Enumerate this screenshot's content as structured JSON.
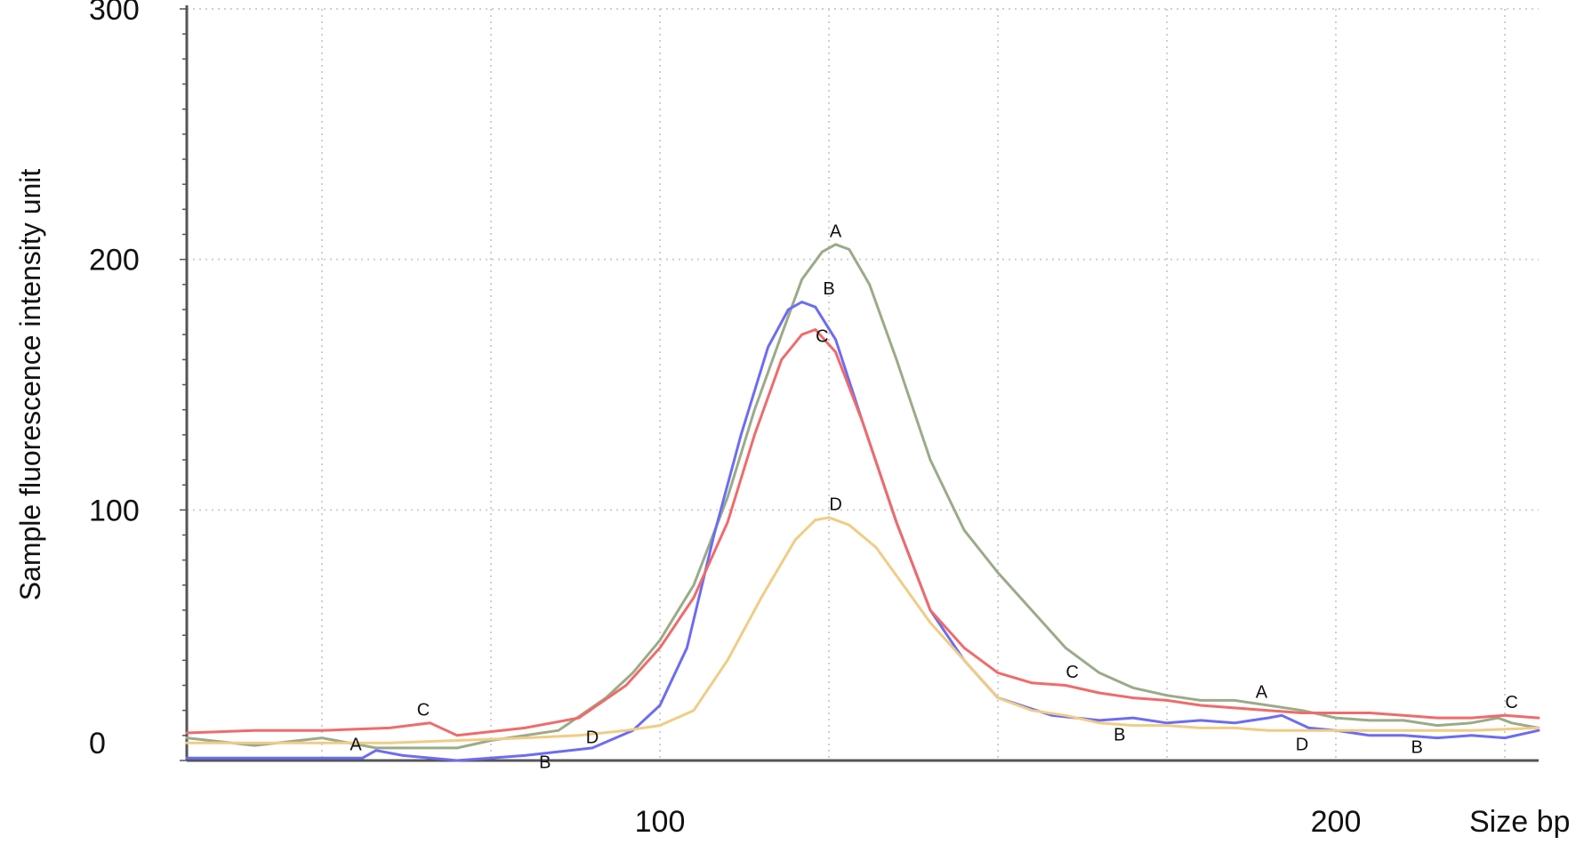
{
  "chart_data": {
    "type": "line",
    "title": "",
    "ylabel": "Sample fluorescence intensity  unit",
    "xlabel": "Size bp",
    "xlim": [
      30,
      230
    ],
    "ylim": [
      0,
      300
    ],
    "grid": true,
    "x_ticks": [
      {
        "value": 100,
        "label": "100"
      },
      {
        "value": 200,
        "label": "200"
      }
    ],
    "y_ticks": [
      {
        "value": 0,
        "label": "0"
      },
      {
        "value": 100,
        "label": "100"
      },
      {
        "value": 200,
        "label": "200"
      },
      {
        "value": 300,
        "label": "300"
      }
    ],
    "colors": {
      "A": "#9aab88",
      "B": "#6d6cf2",
      "C": "#ef6b6b",
      "D": "#f0cc85",
      "grid": "#cfcfcf",
      "axis": "#555555"
    },
    "series": [
      {
        "name": "A",
        "color": "#9aab88",
        "points": [
          [
            30,
            9
          ],
          [
            40,
            6
          ],
          [
            50,
            9
          ],
          [
            58,
            5
          ],
          [
            70,
            5
          ],
          [
            75,
            8
          ],
          [
            85,
            12
          ],
          [
            92,
            25
          ],
          [
            96,
            35
          ],
          [
            100,
            48
          ],
          [
            105,
            70
          ],
          [
            110,
            105
          ],
          [
            114,
            140
          ],
          [
            118,
            170
          ],
          [
            121,
            192
          ],
          [
            124,
            203
          ],
          [
            126,
            206
          ],
          [
            128,
            204
          ],
          [
            131,
            190
          ],
          [
            135,
            160
          ],
          [
            140,
            120
          ],
          [
            145,
            92
          ],
          [
            150,
            75
          ],
          [
            155,
            60
          ],
          [
            160,
            45
          ],
          [
            165,
            35
          ],
          [
            170,
            29
          ],
          [
            175,
            26
          ],
          [
            180,
            24
          ],
          [
            185,
            24
          ],
          [
            190,
            22
          ],
          [
            195,
            20
          ],
          [
            200,
            17
          ],
          [
            205,
            16
          ],
          [
            210,
            16
          ],
          [
            215,
            14
          ],
          [
            220,
            15
          ],
          [
            224,
            17
          ],
          [
            226,
            15
          ],
          [
            230,
            13
          ]
        ]
      },
      {
        "name": "B",
        "color": "#6d6cf2",
        "points": [
          [
            30,
            1
          ],
          [
            50,
            1
          ],
          [
            56,
            1
          ],
          [
            58,
            4
          ],
          [
            62,
            2
          ],
          [
            70,
            0
          ],
          [
            80,
            2
          ],
          [
            90,
            5
          ],
          [
            96,
            12
          ],
          [
            100,
            22
          ],
          [
            104,
            45
          ],
          [
            108,
            90
          ],
          [
            112,
            130
          ],
          [
            116,
            165
          ],
          [
            119,
            180
          ],
          [
            121,
            183
          ],
          [
            123,
            181
          ],
          [
            126,
            168
          ],
          [
            130,
            135
          ],
          [
            135,
            95
          ],
          [
            140,
            60
          ],
          [
            145,
            40
          ],
          [
            150,
            25
          ],
          [
            158,
            18
          ],
          [
            165,
            16
          ],
          [
            170,
            17
          ],
          [
            175,
            15
          ],
          [
            180,
            16
          ],
          [
            185,
            15
          ],
          [
            190,
            17
          ],
          [
            192,
            18
          ],
          [
            196,
            13
          ],
          [
            200,
            12
          ],
          [
            205,
            10
          ],
          [
            210,
            10
          ],
          [
            215,
            9
          ],
          [
            220,
            10
          ],
          [
            225,
            9
          ],
          [
            230,
            12
          ]
        ]
      },
      {
        "name": "C",
        "color": "#ef6b6b",
        "points": [
          [
            30,
            11
          ],
          [
            40,
            12
          ],
          [
            50,
            12
          ],
          [
            60,
            13
          ],
          [
            66,
            15
          ],
          [
            70,
            10
          ],
          [
            80,
            13
          ],
          [
            88,
            17
          ],
          [
            95,
            30
          ],
          [
            100,
            45
          ],
          [
            105,
            65
          ],
          [
            110,
            95
          ],
          [
            114,
            130
          ],
          [
            118,
            160
          ],
          [
            121,
            170
          ],
          [
            123,
            172
          ],
          [
            126,
            163
          ],
          [
            130,
            135
          ],
          [
            135,
            95
          ],
          [
            140,
            60
          ],
          [
            145,
            45
          ],
          [
            150,
            35
          ],
          [
            155,
            31
          ],
          [
            160,
            30
          ],
          [
            165,
            27
          ],
          [
            170,
            25
          ],
          [
            175,
            24
          ],
          [
            180,
            22
          ],
          [
            185,
            21
          ],
          [
            190,
            20
          ],
          [
            195,
            19
          ],
          [
            200,
            19
          ],
          [
            205,
            19
          ],
          [
            210,
            18
          ],
          [
            215,
            17
          ],
          [
            220,
            17
          ],
          [
            225,
            18
          ],
          [
            230,
            17
          ]
        ]
      },
      {
        "name": "D",
        "color": "#f0cc85",
        "points": [
          [
            30,
            7
          ],
          [
            50,
            7
          ],
          [
            60,
            7
          ],
          [
            70,
            8
          ],
          [
            80,
            9
          ],
          [
            88,
            10
          ],
          [
            95,
            12
          ],
          [
            100,
            14
          ],
          [
            105,
            20
          ],
          [
            110,
            40
          ],
          [
            115,
            65
          ],
          [
            120,
            88
          ],
          [
            123,
            96
          ],
          [
            125,
            97
          ],
          [
            128,
            94
          ],
          [
            132,
            85
          ],
          [
            136,
            70
          ],
          [
            140,
            55
          ],
          [
            145,
            40
          ],
          [
            150,
            25
          ],
          [
            155,
            20
          ],
          [
            160,
            18
          ],
          [
            165,
            15
          ],
          [
            170,
            14
          ],
          [
            175,
            14
          ],
          [
            180,
            13
          ],
          [
            185,
            13
          ],
          [
            190,
            12
          ],
          [
            195,
            12
          ],
          [
            200,
            12
          ],
          [
            210,
            12
          ],
          [
            220,
            12
          ],
          [
            230,
            13
          ]
        ]
      }
    ],
    "annotations": [
      {
        "text": "A",
        "x": 55,
        "y": 4
      },
      {
        "text": "C",
        "x": 65,
        "y": 18
      },
      {
        "text": "B",
        "x": 83,
        "y": -3
      },
      {
        "text": "D",
        "x": 90,
        "y": 7
      },
      {
        "text": "A",
        "x": 126,
        "y": 209
      },
      {
        "text": "B",
        "x": 125,
        "y": 186
      },
      {
        "text": "C",
        "x": 124,
        "y": 167
      },
      {
        "text": "D",
        "x": 126,
        "y": 100
      },
      {
        "text": "C",
        "x": 161,
        "y": 33
      },
      {
        "text": "B",
        "x": 168,
        "y": 8
      },
      {
        "text": "A",
        "x": 189,
        "y": 25
      },
      {
        "text": "D",
        "x": 195,
        "y": 4
      },
      {
        "text": "B",
        "x": 212,
        "y": 3
      },
      {
        "text": "C",
        "x": 226,
        "y": 21
      }
    ]
  }
}
